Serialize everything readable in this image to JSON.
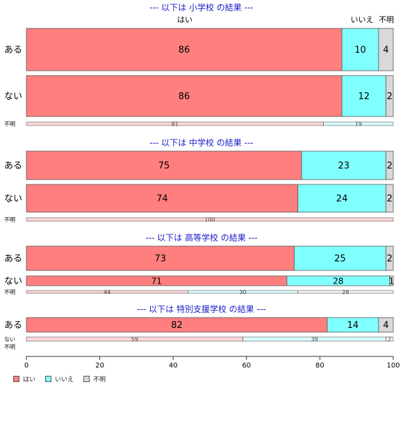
{
  "chart_data": {
    "type": "bar",
    "orientation": "horizontal",
    "stacked": "percent",
    "xlim": [
      0,
      100
    ],
    "xticks": [
      "0",
      "20",
      "40",
      "60",
      "80",
      "100"
    ],
    "column_headers": [
      "はい",
      "いいえ",
      "不明"
    ],
    "legend": {
      "position": "bottom-left",
      "items": [
        "はい",
        "いいえ",
        "不明"
      ]
    },
    "colors": {
      "yes": "#ff7f7f",
      "no": "#80ffff",
      "unknown": "#d9d9d9",
      "title": "#1a1acd"
    },
    "panels": [
      {
        "title": "--- 以下は 小学校 の結果 ---",
        "rows": [
          {
            "label": "ある",
            "values": [
              86,
              10,
              4
            ]
          },
          {
            "label": "ない",
            "values": [
              86,
              12,
              2
            ]
          },
          {
            "label": "不明",
            "values": [
              81,
              19,
              0
            ]
          }
        ]
      },
      {
        "title": "--- 以下は 中学校 の結果 ---",
        "rows": [
          {
            "label": "ある",
            "values": [
              75,
              23,
              2
            ]
          },
          {
            "label": "ない",
            "values": [
              74,
              24,
              2
            ]
          },
          {
            "label": "不明",
            "values": [
              100,
              0,
              0
            ]
          }
        ]
      },
      {
        "title": "--- 以下は 高等学校 の結果 ---",
        "rows": [
          {
            "label": "ある",
            "values": [
              73,
              25,
              2
            ]
          },
          {
            "label": "ない",
            "values": [
              71,
              28,
              1
            ]
          },
          {
            "label": "不明",
            "values": [
              44,
              30,
              26
            ]
          }
        ]
      },
      {
        "title": "--- 以下は 特別支援学校 の結果 ---",
        "rows": [
          {
            "label": "ある",
            "values": [
              82,
              14,
              4
            ]
          },
          {
            "label": "ない",
            "values": [
              59,
              39,
              2
            ]
          },
          {
            "label": "不明",
            "values": []
          }
        ]
      }
    ]
  }
}
